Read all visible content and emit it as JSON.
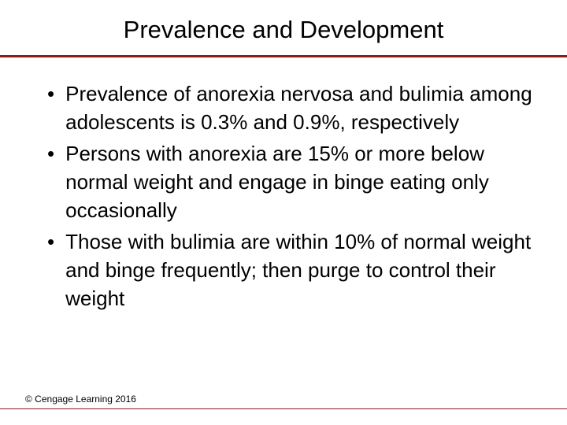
{
  "title": "Prevalence and Development",
  "bullets": [
    "Prevalence of anorexia nervosa and bulimia among adolescents is 0.3% and 0.9%, respectively",
    "Persons with anorexia are 15% or more below normal weight and engage in binge eating only occasionally",
    "Those with bulimia are within 10% of normal weight and binge frequently; then purge to control their weight"
  ],
  "footer": "© Cengage Learning 2016",
  "colors": {
    "divider": "#8b1a1a",
    "text": "#000000",
    "background": "#ffffff"
  },
  "typography": {
    "title_fontsize": 31,
    "bullet_fontsize": 26,
    "footer_fontsize": 12,
    "font_family": "Arial"
  }
}
